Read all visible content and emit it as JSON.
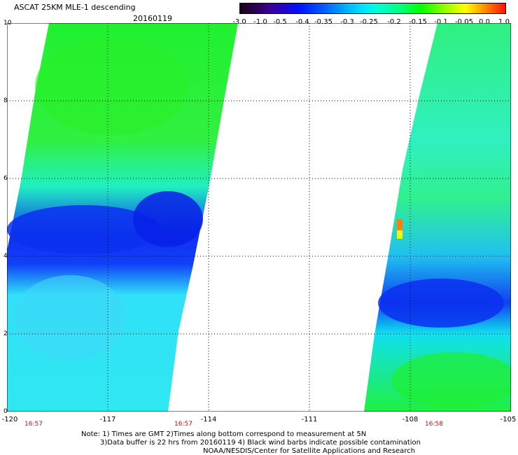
{
  "header": {
    "title": "ASCAT 25KM MLE-1 descending",
    "date": "20160119"
  },
  "colorbar": {
    "labels": [
      "-3.0",
      "-1.0",
      "-0.5",
      "-0.4",
      "-0.35",
      "-0.3",
      "-0.25",
      "-0.2",
      "-0.15",
      "-0.1",
      "-0.05",
      "0.0",
      "1.0"
    ]
  },
  "map": {
    "y_ticks": [
      "0",
      "2",
      "4",
      "6",
      "8",
      "10"
    ],
    "x_ticks": [
      "-120",
      "-117",
      "-114",
      "-111",
      "-108",
      "-105"
    ],
    "time_labels": [
      "16:57",
      "16:57",
      "16:58"
    ],
    "swaths": [
      {
        "name": "west-swath",
        "color": "#10ee20"
      },
      {
        "name": "east-swath",
        "color": "#10ee20"
      }
    ],
    "low_region_color": "#0840f0",
    "mid_region_color": "#10e8f0"
  },
  "footer": {
    "note1": "Note: 1) Times are GMT 2)Times along bottom correspond to measurement at 5N",
    "note2": "3)Data buffer is 22 hrs from 20160119 4) Black wind barbs indicate possible contamination",
    "note3": "NOAA/NESDIS/Center for Satellite Applications and Research"
  }
}
